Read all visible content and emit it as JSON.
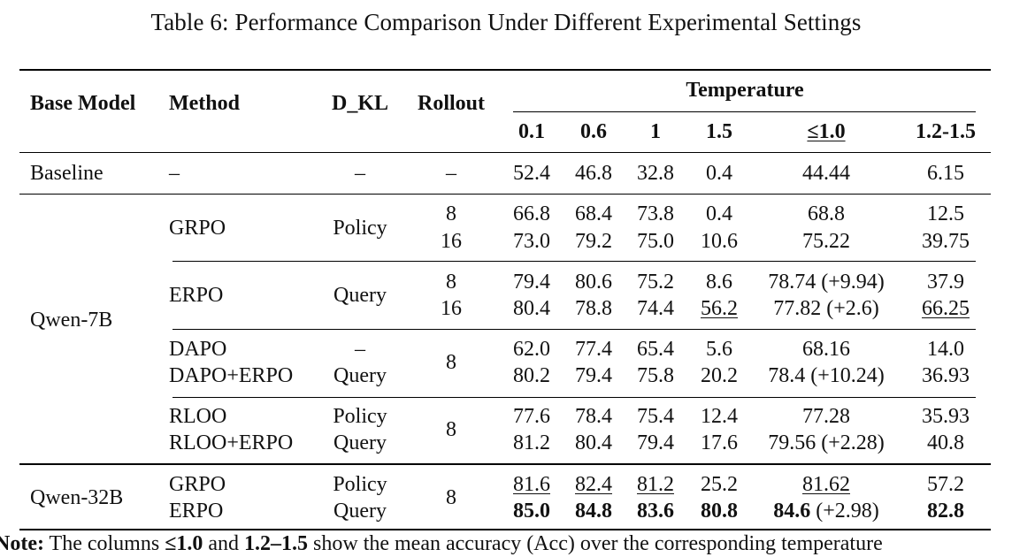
{
  "caption": "Table 6: Performance Comparison Under Different Experimental Settings",
  "headers": {
    "base_model": "Base Model",
    "method": "Method",
    "dkl": "D_KL",
    "rollout": "Rollout",
    "temperature": "Temperature",
    "t01": "0.1",
    "t06": "0.6",
    "t1": "1",
    "t15": "1.5",
    "tle1": "≤1.0",
    "t1215": "1.2-1.5"
  },
  "baseline": {
    "model": "Baseline",
    "method": "–",
    "dkl": "–",
    "rollout": "–",
    "v01": "52.4",
    "v06": "46.8",
    "v1": "32.8",
    "v15": "0.4",
    "vle1": "44.44",
    "v1215": "6.15"
  },
  "qwen7b": {
    "model": "Qwen-7B",
    "grpo": {
      "method": "GRPO",
      "dkl": "Policy",
      "r1": {
        "rollout": "8",
        "v01": "66.8",
        "v06": "68.4",
        "v1": "73.8",
        "v15": "0.4",
        "vle1": "68.8",
        "v1215": "12.5"
      },
      "r2": {
        "rollout": "16",
        "v01": "73.0",
        "v06": "79.2",
        "v1": "75.0",
        "v15": "10.6",
        "vle1": "75.22",
        "v1215": "39.75"
      }
    },
    "erpo": {
      "method": "ERPO",
      "dkl": "Query",
      "r1": {
        "rollout": "8",
        "v01": "79.4",
        "v06": "80.6",
        "v1": "75.2",
        "v15": "8.6",
        "vle1": "78.74 (+9.94)",
        "v1215": "37.9"
      },
      "r2": {
        "rollout": "16",
        "v01": "80.4",
        "v06": "78.8",
        "v1": "74.4",
        "v15": "56.2",
        "vle1": "77.82 (+2.6)",
        "v1215": "66.25"
      }
    },
    "dapo": {
      "rollout": "8",
      "r1": {
        "method": "DAPO",
        "dkl": "–",
        "v01": "62.0",
        "v06": "77.4",
        "v1": "65.4",
        "v15": "5.6",
        "vle1": "68.16",
        "v1215": "14.0"
      },
      "r2": {
        "method": "DAPO+ERPO",
        "dkl": "Query",
        "v01": "80.2",
        "v06": "79.4",
        "v1": "75.8",
        "v15": "20.2",
        "vle1": "78.4 (+10.24)",
        "v1215": "36.93"
      }
    },
    "rloo": {
      "rollout": "8",
      "r1": {
        "method": "RLOO",
        "dkl": "Policy",
        "v01": "77.6",
        "v06": "78.4",
        "v1": "75.4",
        "v15": "12.4",
        "vle1": "77.28",
        "v1215": "35.93"
      },
      "r2": {
        "method": "RLOO+ERPO",
        "dkl": "Query",
        "v01": "81.2",
        "v06": "80.4",
        "v1": "79.4",
        "v15": "17.6",
        "vle1": "79.56 (+2.28)",
        "v1215": "40.8"
      }
    }
  },
  "qwen32b": {
    "model": "Qwen-32B",
    "rollout": "8",
    "r1": {
      "method": "GRPO",
      "dkl": "Policy",
      "v01": "81.6",
      "v06": "82.4",
      "v1": "81.2",
      "v15": "25.2",
      "vle1": "81.62",
      "v1215": "57.2"
    },
    "r2": {
      "method": "ERPO",
      "dkl": "Query",
      "v01": "85.0",
      "v06": "84.8",
      "v1": "83.6",
      "v15": "80.8",
      "vle1_bold": "84.6",
      "vle1_rest": " (+2.98)",
      "v1215": "82.8"
    }
  },
  "note": {
    "label": "Note:",
    "text1": " The columns ",
    "col1": "≤1.0",
    "text2": " and ",
    "col2": "1.2–1.5",
    "text3": " show the mean accuracy (Acc) over the corresponding temperature"
  }
}
